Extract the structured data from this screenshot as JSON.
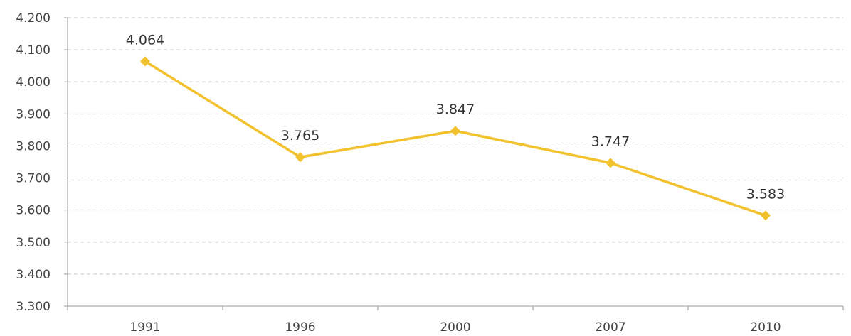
{
  "chart_data": {
    "type": "line",
    "title": "",
    "xlabel": "",
    "ylabel": "",
    "categories": [
      "1991",
      "1996",
      "2000",
      "2007",
      "2010"
    ],
    "series": [
      {
        "values": [
          4064,
          3765,
          3847,
          3747,
          3583
        ],
        "data_labels": [
          "4.064",
          "3.765",
          "3.847",
          "3.747",
          "3.583"
        ],
        "color": "#F2C12E",
        "marker": "diamond"
      }
    ],
    "ylim": [
      3300,
      4200
    ],
    "yticks": [
      3300,
      3400,
      3500,
      3600,
      3700,
      3800,
      3900,
      4000,
      4100,
      4200
    ],
    "ytick_labels": [
      "3.300",
      "3.400",
      "3.500",
      "3.600",
      "3.700",
      "3.800",
      "3.900",
      "4.000",
      "4.100",
      "4.200"
    ],
    "grid": true,
    "grid_style": "dashed",
    "legend": "none"
  }
}
